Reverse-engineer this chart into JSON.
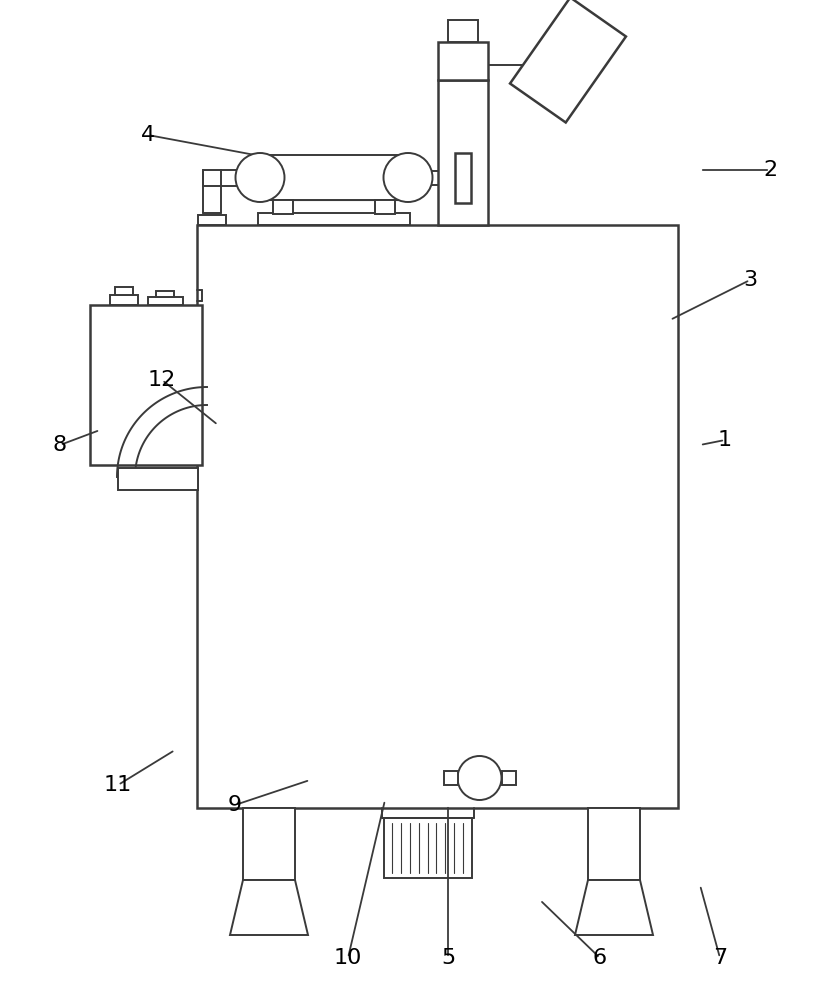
{
  "bg_color": "#ffffff",
  "lc": "#3a3a3a",
  "lw_main": 1.8,
  "lw_detail": 1.4,
  "lw_thin": 0.8,
  "label_fontsize": 16,
  "leaders": [
    [
      "1",
      725,
      560,
      700,
      555
    ],
    [
      "2",
      770,
      830,
      700,
      830
    ],
    [
      "3",
      750,
      720,
      670,
      680
    ],
    [
      "4",
      148,
      865,
      255,
      845
    ],
    [
      "5",
      448,
      42,
      448,
      195
    ],
    [
      "6",
      600,
      42,
      540,
      100
    ],
    [
      "7",
      720,
      42,
      700,
      115
    ],
    [
      "8",
      60,
      555,
      100,
      570
    ],
    [
      "9",
      235,
      195,
      310,
      220
    ],
    [
      "10",
      348,
      42,
      385,
      200
    ],
    [
      "11",
      118,
      215,
      175,
      250
    ],
    [
      "12",
      162,
      620,
      218,
      575
    ]
  ]
}
